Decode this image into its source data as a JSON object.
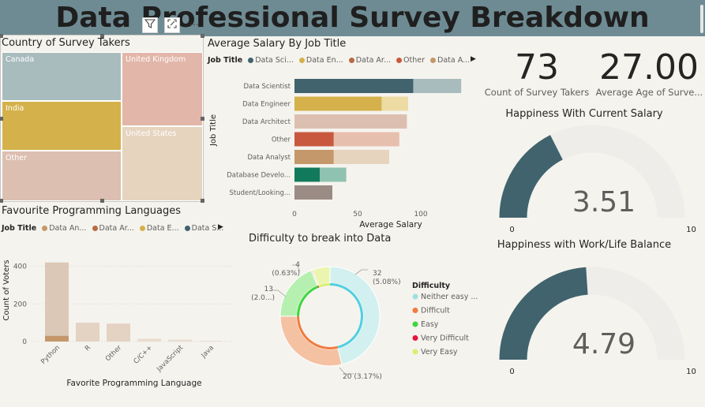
{
  "title": "Data Professional Survey Breakdown",
  "visual_header": {
    "filter_icon": "filter-icon",
    "focus_icon": "focus-mode-icon",
    "more_icon": "more-options-icon"
  },
  "treemap": {
    "title": "Country of Survey Takers",
    "items": [
      {
        "label": "Canada",
        "color": "#a9bcbd"
      },
      {
        "label": "United Kingdom",
        "color": "#e2b6a8"
      },
      {
        "label": "India",
        "color": "#d4b14a"
      },
      {
        "label": "United States",
        "color": "#e6d4bf"
      },
      {
        "label": "Other",
        "color": "#dcbfb0"
      }
    ]
  },
  "salary": {
    "title": "Average Salary By Job Title",
    "legend_title": "Job Title",
    "legend": [
      {
        "label": "Data Sci...",
        "color": "#40636d"
      },
      {
        "label": "Data En...",
        "color": "#d4b14a"
      },
      {
        "label": "Data Ar...",
        "color": "#b86a45"
      },
      {
        "label": "Other",
        "color": "#c8593e"
      },
      {
        "label": "Data A...",
        "color": "#c4986a"
      }
    ],
    "legend_more_icon": "chevron-right-icon"
  },
  "kpis": {
    "count": {
      "value": "73",
      "label": "Count of Survey Takers"
    },
    "age": {
      "value": "27.00",
      "label": "Average Age of Surve..."
    }
  },
  "gauge_salary": {
    "title": "Happiness With Current Salary",
    "value": "3.51",
    "min": "0",
    "max": "10",
    "fraction": 0.351,
    "fill_color": "#40636d",
    "track_color": "#efedea"
  },
  "gauge_worklife": {
    "title": "Happiness with Work/Life Balance",
    "value": "4.79",
    "min": "0",
    "max": "10",
    "fraction": 0.479,
    "fill_color": "#40636d",
    "track_color": "#efedea"
  },
  "languages": {
    "title": "Favourite Programming Languages",
    "legend_title": "Job Title",
    "legend": [
      {
        "label": "Data An...",
        "color": "#c4986a"
      },
      {
        "label": "Data Ar...",
        "color": "#b86a45"
      },
      {
        "label": "Data E...",
        "color": "#d4b14a"
      },
      {
        "label": "Data S...",
        "color": "#40636d"
      }
    ],
    "legend_more_icon": "chevron-right-icon"
  },
  "difficulty": {
    "title": "Difficulty to break into Data",
    "legend_title": "Difficulty",
    "legend": [
      {
        "label": "Neither easy ...",
        "color": "#9ee0e0"
      },
      {
        "label": "Difficult",
        "color": "#f07b3f"
      },
      {
        "label": "Easy",
        "color": "#3ed63e"
      },
      {
        "label": "Very Difficult",
        "color": "#e3163c"
      },
      {
        "label": "Very Easy",
        "color": "#d8f070"
      }
    ],
    "annotations": {
      "top_right": [
        "32",
        "(5.08%)"
      ],
      "bottom": "20 (3.17%)",
      "left": [
        "13",
        "(2.0...)"
      ],
      "top_left": [
        "4",
        "(0.63%)"
      ]
    }
  },
  "chart_data": [
    {
      "type": "bar",
      "title": "Average Salary By Job Title",
      "xlabel": "Average Salary",
      "ylabel": "Job Title",
      "categories": [
        "Data Scientist",
        "Data Engineer",
        "Data Architect",
        "Other",
        "Data Analyst",
        "Database Develo...",
        "Student/Looking..."
      ],
      "values": [
        132,
        90,
        89,
        83,
        75,
        41,
        30
      ],
      "highlight_values": [
        94,
        69,
        0,
        31,
        31,
        20,
        30
      ],
      "bar_colors": [
        "#40636d",
        "#d4b14a",
        "#dcbfb0",
        "#c8593e",
        "#c4986a",
        "#127a5c",
        "#9a8c85"
      ],
      "bar_light_colors": [
        "#a9bcbd",
        "#ecdca4",
        "#dcbfb0",
        "#e7bfae",
        "#e6d4bf",
        "#8fc2b0",
        "#c4b8b2"
      ],
      "x_ticks": [
        "0",
        "50",
        "100"
      ],
      "xlim": [
        0,
        145
      ]
    },
    {
      "type": "bar",
      "title": "Favourite Programming Languages",
      "xlabel": "Favorite Programming Language",
      "ylabel": "Count of Voters",
      "categories": [
        "Python",
        "R",
        "Other",
        "C/C++",
        "JavaScript",
        "Java"
      ],
      "values": [
        420,
        100,
        95,
        15,
        10,
        4
      ],
      "highlight_values": [
        30,
        0,
        0,
        0,
        0,
        0
      ],
      "y_ticks": [
        "0",
        "200",
        "400"
      ],
      "ylim": [
        0,
        440
      ],
      "bar_colors": [
        "#dcc8b6",
        "#e4d2c2",
        "#e4d2c2",
        "#e8dcd0",
        "#e8dcd0",
        "#e8dcd0"
      ],
      "highlight_color": "#c4986a"
    },
    {
      "type": "pie",
      "title": "Difficulty to break into Data",
      "categories": [
        "Neither easy ...",
        "Difficult",
        "Easy",
        "Very Difficult",
        "Very Easy"
      ],
      "values": [
        32,
        20,
        13,
        0.3,
        4
      ],
      "outer_colors": [
        "#d2f0f0",
        "#f5c1a3",
        "#b6f0b0",
        "#f6a0a8",
        "#ecf5b0"
      ],
      "inner_colors": [
        "#4ecfe0",
        "#f07b3f",
        "#3ed63e",
        "#e3163c",
        "#d8f070"
      ]
    }
  ]
}
